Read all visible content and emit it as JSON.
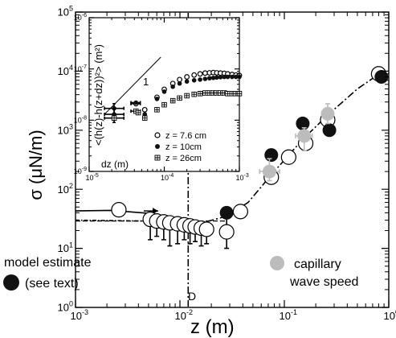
{
  "chart_data": [
    {
      "type": "scatter",
      "xlabel": "z (m)",
      "ylabel": "σ (μN/m)",
      "xscale": "log",
      "yscale": "log",
      "xlim": [
        0.001,
        1
      ],
      "ylim": [
        1,
        100000
      ],
      "xticks": [
        {
          "value": 0.001,
          "base": "10",
          "exp": "-3"
        },
        {
          "value": 0.01,
          "base": "10",
          "exp": "-2"
        },
        {
          "value": 0.1,
          "base": "10",
          "exp": "-1"
        },
        {
          "value": 1,
          "base": "10",
          "exp": "0"
        }
      ],
      "yticks": [
        {
          "value": 1,
          "base": "10",
          "exp": "0"
        },
        {
          "value": 10,
          "base": "10",
          "exp": "1"
        },
        {
          "value": 100,
          "base": "10",
          "exp": "2"
        },
        {
          "value": 1000,
          "base": "10",
          "exp": "3"
        },
        {
          "value": 10000,
          "base": "10",
          "exp": "4"
        },
        {
          "value": 100000,
          "base": "10",
          "exp": "5"
        }
      ],
      "series": [
        {
          "marker": "open-circle",
          "color": "#000000",
          "points": [
            {
              "x": 0.0026,
              "y": 45
            },
            {
              "x": 0.0052,
              "y": 31,
              "ylo": 14
            },
            {
              "x": 0.006,
              "y": 29,
              "ylo": 16
            },
            {
              "x": 0.007,
              "y": 28,
              "ylo": 14
            },
            {
              "x": 0.008,
              "y": 27,
              "ylo": 11
            },
            {
              "x": 0.0095,
              "y": 26,
              "ylo": 12
            },
            {
              "x": 0.011,
              "y": 25,
              "ylo": 14
            },
            {
              "x": 0.0125,
              "y": 24,
              "ylo": 12
            },
            {
              "x": 0.014,
              "y": 23,
              "ylo": 13
            },
            {
              "x": 0.016,
              "y": 22,
              "ylo": 11
            },
            {
              "x": 0.018,
              "y": 21,
              "ylo": 12
            },
            {
              "x": 0.028,
              "y": 19,
              "ylo": 10,
              "yhi": 32
            },
            {
              "x": 0.038,
              "y": 42
            },
            {
              "x": 0.075,
              "y": 160
            },
            {
              "x": 0.11,
              "y": 350
            },
            {
              "x": 0.16,
              "y": 600
            },
            {
              "x": 0.26,
              "y": 1500
            },
            {
              "x": 0.8,
              "y": 9000
            }
          ]
        },
        {
          "marker": "filled-circle",
          "color": "#000000",
          "points": [
            {
              "x": 0.028,
              "y": 40
            },
            {
              "x": 0.075,
              "y": 380
            },
            {
              "x": 0.15,
              "y": 1300
            },
            {
              "x": 0.27,
              "y": 1000
            },
            {
              "x": 0.85,
              "y": 8000
            }
          ]
        },
        {
          "marker": "gray-circle",
          "color": "#bcbcbc",
          "points": [
            {
              "x": 0.072,
              "y": 200,
              "xlo": 0.058,
              "xhi": 0.09,
              "ylo": 140,
              "yhi": 330
            },
            {
              "x": 0.155,
              "y": 800,
              "xlo": 0.128,
              "xhi": 0.185,
              "ylo": 450,
              "yhi": 1100
            },
            {
              "x": 0.26,
              "y": 1900,
              "ylo": 1300,
              "yhi": 2800
            }
          ]
        }
      ],
      "lines": [
        {
          "style": "dash-dot",
          "points": [
            [
              0.0055,
              32
            ],
            [
              0.015,
              26
            ],
            [
              0.028,
              35
            ],
            [
              0.045,
              60
            ],
            [
              0.08,
              200
            ],
            [
              0.15,
              700
            ],
            [
              0.26,
              1800
            ],
            [
              0.5,
              5000
            ],
            [
              0.85,
              9500
            ]
          ]
        },
        {
          "style": "solid",
          "points": [
            [
              0.001,
              43
            ],
            [
              0.0022,
              44
            ],
            [
              0.0052,
              39
            ]
          ]
        },
        {
          "style": "dash-dot",
          "points": [
            [
              0.001,
              30
            ],
            [
              0.0052,
              29
            ]
          ]
        }
      ],
      "arrows": [
        {
          "from": [
            0.0045,
            43
          ],
          "to": [
            0.0062,
            43
          ]
        },
        {
          "from": [
            0.0045,
            29
          ],
          "to": [
            0.0062,
            29
          ]
        }
      ],
      "vertical_line": {
        "x": 0.012,
        "label": "D"
      },
      "horizontal_line": {
        "y": 29,
        "xmin": 0.001,
        "xmax": 0.028
      },
      "annotations": {
        "model_estimate": [
          "model estimate",
          "(see text)"
        ],
        "capillary": [
          "capillary",
          "wave speed"
        ]
      }
    },
    {
      "type": "scatter",
      "xlabel": "dz (m)",
      "ylabel": "<(h(z)-h(z+dz))²> (m²)",
      "xscale": "log",
      "yscale": "log",
      "xlim": [
        1e-05,
        0.001
      ],
      "ylim": [
        1e-09,
        1e-06
      ],
      "xticks": [
        {
          "value": 1e-05,
          "base": "10",
          "exp": "-5"
        },
        {
          "value": 0.0001,
          "base": "10",
          "exp": "-4"
        },
        {
          "value": 0.001,
          "base": "10",
          "exp": "-3"
        }
      ],
      "yticks": [
        {
          "value": 1e-09,
          "base": "10",
          "exp": "-9"
        },
        {
          "value": 1e-08,
          "base": "10",
          "exp": "-8"
        },
        {
          "value": 1e-07,
          "base": "10",
          "exp": "-7"
        },
        {
          "value": 1e-06,
          "base": "10",
          "exp": "-6"
        }
      ],
      "slope_line": {
        "from": [
          1.6e-05,
          1.3e-08
        ],
        "to": [
          9e-05,
          1.7e-07
        ],
        "label": "1"
      },
      "legend": [
        {
          "marker": "open-circle",
          "label": "z = 7.6 cm"
        },
        {
          "marker": "filled-circle",
          "label": "z = 10cm"
        },
        {
          "marker": "square-cross",
          "label": "z = 26cm"
        }
      ],
      "series": [
        {
          "marker": "open-circle",
          "x": [
            5.5e-05,
            8e-05,
            0.0001,
            0.00013,
            0.00016,
            0.0002,
            0.00025,
            0.0003,
            0.00035,
            0.0004,
            0.00045,
            0.0005,
            0.00056,
            0.00063,
            0.0007,
            0.0008,
            0.0009,
            0.001
          ],
          "y": [
            1.6e-08,
            2.8e-08,
            4e-08,
            5.2e-08,
            6.2e-08,
            7e-08,
            7.6e-08,
            8e-08,
            8.3e-08,
            8.4e-08,
            8.5e-08,
            8.4e-08,
            8.3e-08,
            8.2e-08,
            8e-08,
            7.8e-08,
            7.6e-08,
            7.5e-08
          ]
        },
        {
          "marker": "filled-circle",
          "x": [
            5.5e-05,
            8e-05,
            0.0001,
            0.00013,
            0.00016,
            0.0002,
            0.00025,
            0.0003,
            0.00035,
            0.0004,
            0.00045,
            0.0005,
            0.00056,
            0.00063,
            0.0007,
            0.0008,
            0.0009,
            0.001
          ],
          "y": [
            1.3e-08,
            2.6e-08,
            3.6e-08,
            4.5e-08,
            5.2e-08,
            5.7e-08,
            6e-08,
            6.2e-08,
            6.4e-08,
            6.6e-08,
            6.7e-08,
            6.8e-08,
            6.9e-08,
            7e-08,
            7e-08,
            7e-08,
            7e-08,
            7e-08
          ]
        },
        {
          "marker": "square-cross",
          "x": [
            5.5e-05,
            8e-05,
            0.0001,
            0.00013,
            0.00016,
            0.0002,
            0.00025,
            0.0003,
            0.00035,
            0.0004,
            0.00045,
            0.0005,
            0.00056,
            0.00063,
            0.0007,
            0.0008,
            0.0009,
            0.001
          ],
          "y": [
            1.1e-08,
            1.6e-08,
            2e-08,
            2.4e-08,
            2.7e-08,
            3e-08,
            3.2e-08,
            3.3e-08,
            3.4e-08,
            3.4e-08,
            3.4e-08,
            3.4e-08,
            3.4e-08,
            3.4e-08,
            3.3e-08,
            3.3e-08,
            3.3e-08,
            3.3e-08
          ]
        }
      ],
      "error_points": [
        {
          "marker": "filled-circle",
          "x": 2.15e-05,
          "y": 1.7e-08,
          "xlo": 1.6e-05,
          "xhi": 2.9e-05,
          "ylo": 1.2e-08,
          "yhi": 2.1e-08
        },
        {
          "marker": "filled-circle",
          "x": 2.15e-05,
          "y": 1.3e-08,
          "xlo": 1.6e-05,
          "xhi": 2.9e-05,
          "ylo": 9e-09,
          "yhi": 1.7e-08
        },
        {
          "marker": "square-cross",
          "x": 2.15e-05,
          "y": 1.1e-08,
          "xlo": 1.6e-05,
          "xhi": 2.9e-05
        },
        {
          "marker": "open-circle",
          "x": 4.2e-05,
          "y": 2.1e-08,
          "xlo": 3.6e-05,
          "xhi": 4.8e-05
        },
        {
          "marker": "filled-circle",
          "x": 4.2e-05,
          "y": 2.2e-08,
          "xlo": 3.6e-05,
          "xhi": 4.8e-05
        },
        {
          "marker": "square-cross",
          "x": 4.2e-05,
          "y": 1.5e-08,
          "xlo": 3.6e-05,
          "xhi": 4.8e-05
        },
        {
          "marker": "square-cross",
          "x": 4.5e-05,
          "y": 1.4e-08
        }
      ]
    }
  ]
}
